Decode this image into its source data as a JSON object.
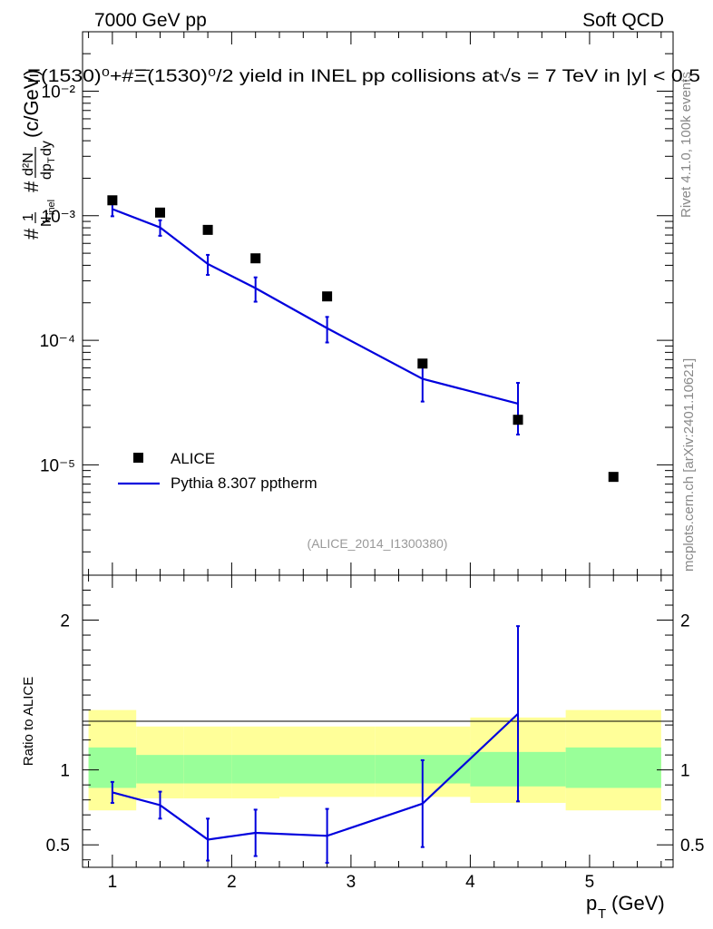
{
  "header": {
    "left": "7000 GeV pp",
    "right": "Soft QCD",
    "plot_title": "Ξ(1530)⁰+#Ξ̄(1530)⁰/2 yield in INEL pp collisions at√s = 7 TeV in |y| < 0.5",
    "analysis_id": "(ALICE_2014_I1300380)"
  },
  "side": {
    "rivet": "Rivet 4.1.0,  100k events",
    "mcplots": "mcplots.cern.ch [arXiv:2401.10621]"
  },
  "colors": {
    "mc": "#0000dd",
    "data": "#000000",
    "band_inner": "#99ff99",
    "band_outer": "#ffff99"
  },
  "chart_data": [
    {
      "type": "scatter",
      "panel": "main",
      "title": "Ξ(1530)⁰+#Ξ̄(1530)⁰/2 yield in INEL pp collisions at√s = 7 TeV in |y| < 0.5",
      "ylabel": "#1/N_inel #d²N/dp_T dy (c/GeV)",
      "xlabel": "",
      "yscale": "log",
      "xlim": [
        0.75,
        5.7
      ],
      "ylim": [
        1.3e-06,
        0.03
      ],
      "y_ticks": [
        "10⁻⁵",
        "10⁻⁴",
        "10⁻³",
        "10⁻²"
      ],
      "legend_position": "bottom-left",
      "series": [
        {
          "name": "ALICE",
          "marker": "square",
          "x": [
            1.0,
            1.4,
            1.8,
            2.2,
            2.8,
            3.6,
            4.4,
            5.2
          ],
          "y": [
            0.00133,
            0.00106,
            0.00077,
            0.000455,
            0.000225,
            6.5e-05,
            2.3e-05,
            8e-06
          ]
        },
        {
          "name": "Pythia 8.307 pptherm",
          "style": "line",
          "x": [
            1.0,
            1.4,
            1.8,
            2.2,
            2.8,
            3.6,
            4.4
          ],
          "y": [
            0.00113,
            0.000805,
            0.00041,
            0.000262,
            0.000125,
            4.9e-05,
            3.1e-05
          ],
          "err_low": [
            0.00014,
            0.000115,
            7.5e-05,
            5.8e-05,
            2.9e-05,
            1.68e-05,
            1.35e-05
          ],
          "err_high": [
            0.00014,
            0.000115,
            7.5e-05,
            5.8e-05,
            2.9e-05,
            1.68e-05,
            1.45e-05
          ]
        }
      ]
    },
    {
      "type": "line",
      "panel": "ratio",
      "ylabel": "Ratio to ALICE",
      "xlabel": "p_T (GeV)",
      "xlim": [
        0.75,
        5.7
      ],
      "ylim": [
        0.35,
        2.3
      ],
      "y_ticks": [
        0.5,
        1,
        2
      ],
      "x_ticks": [
        1,
        2,
        3,
        4,
        5
      ],
      "bands": {
        "edges": [
          0.8,
          1.2,
          1.6,
          2.0,
          2.4,
          3.2,
          4.0,
          4.8,
          5.6
        ],
        "outer_low": [
          0.73,
          0.81,
          0.81,
          0.81,
          0.82,
          0.82,
          0.78,
          0.73
        ],
        "outer_high": [
          1.4,
          1.29,
          1.29,
          1.29,
          1.29,
          1.29,
          1.35,
          1.4
        ],
        "inner_low": [
          0.88,
          0.91,
          0.91,
          0.91,
          0.91,
          0.91,
          0.89,
          0.88
        ],
        "inner_high": [
          1.15,
          1.1,
          1.1,
          1.1,
          1.1,
          1.1,
          1.12,
          1.15
        ]
      },
      "series": [
        {
          "name": "Pythia 8.307 pptherm / ALICE",
          "x": [
            1.0,
            1.4,
            1.8,
            2.2,
            2.8,
            3.6,
            4.4
          ],
          "y": [
            0.85,
            0.765,
            0.535,
            0.58,
            0.56,
            0.775,
            1.375
          ],
          "err_low": [
            0.07,
            0.09,
            0.14,
            0.155,
            0.18,
            0.29,
            0.585
          ],
          "err_high": [
            0.07,
            0.09,
            0.14,
            0.155,
            0.18,
            0.29,
            0.585
          ]
        }
      ]
    }
  ],
  "legend": [
    {
      "label": "ALICE"
    },
    {
      "label": "Pythia 8.307 pptherm"
    }
  ]
}
